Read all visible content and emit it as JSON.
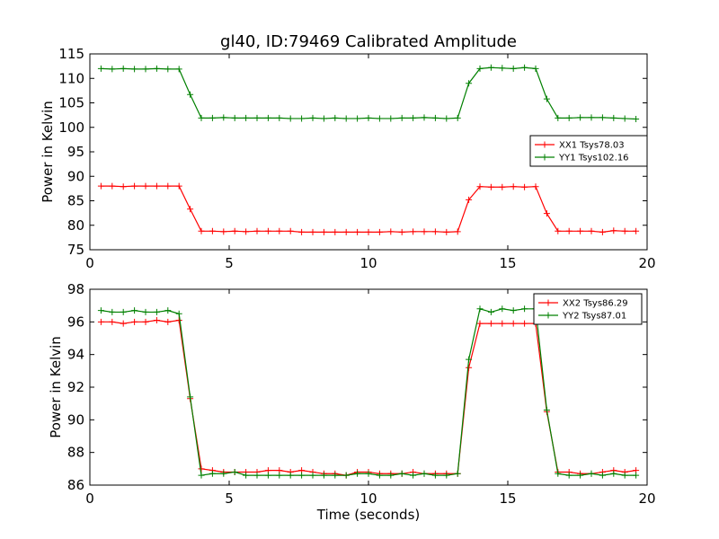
{
  "figure": {
    "title": "gl40, ID:79469 Calibrated Amplitude"
  },
  "chart_data": [
    {
      "type": "line",
      "title": "gl40, ID:79469 Calibrated Amplitude",
      "xlabel": "",
      "ylabel": "Power in Kelvin",
      "xlim": [
        0,
        20
      ],
      "ylim": [
        75,
        115
      ],
      "xticks": [
        0,
        5,
        10,
        15,
        20
      ],
      "yticks": [
        75,
        80,
        85,
        90,
        95,
        100,
        105,
        110,
        115
      ],
      "grid": false,
      "legend_position": "center-right",
      "x": [
        0.4,
        0.8,
        1.2,
        1.6,
        2.0,
        2.4,
        2.8,
        3.2,
        3.6,
        4.0,
        4.4,
        4.8,
        5.2,
        5.6,
        6.0,
        6.4,
        6.8,
        7.2,
        7.6,
        8.0,
        8.4,
        8.8,
        9.2,
        9.6,
        10.0,
        10.4,
        10.8,
        11.2,
        11.6,
        12.0,
        12.4,
        12.8,
        13.2,
        13.6,
        14.0,
        14.4,
        14.8,
        15.2,
        15.6,
        16.0,
        16.4,
        16.8,
        17.2,
        17.6,
        18.0,
        18.4,
        18.8,
        19.2,
        19.6
      ],
      "series": [
        {
          "name": "XX1 Tsys78.03",
          "color": "#ff0000",
          "values": [
            88.0,
            88.0,
            87.9,
            88.0,
            88.0,
            88.0,
            88.0,
            88.0,
            83.3,
            78.8,
            78.8,
            78.7,
            78.8,
            78.7,
            78.8,
            78.8,
            78.8,
            78.8,
            78.6,
            78.6,
            78.6,
            78.6,
            78.6,
            78.6,
            78.6,
            78.6,
            78.7,
            78.6,
            78.7,
            78.7,
            78.7,
            78.6,
            78.7,
            85.2,
            87.9,
            87.8,
            87.8,
            87.9,
            87.8,
            87.9,
            82.4,
            78.8,
            78.8,
            78.8,
            78.8,
            78.6,
            78.9,
            78.8,
            78.8
          ]
        },
        {
          "name": "YY1 Tsys102.16",
          "color": "#008000",
          "values": [
            112.0,
            111.9,
            112.0,
            111.9,
            111.9,
            112.0,
            111.9,
            111.9,
            106.7,
            101.9,
            101.9,
            102.0,
            101.9,
            101.9,
            101.9,
            101.9,
            101.9,
            101.8,
            101.8,
            101.9,
            101.8,
            101.9,
            101.8,
            101.8,
            101.9,
            101.8,
            101.8,
            101.9,
            101.9,
            102.0,
            101.9,
            101.8,
            101.9,
            109.0,
            112.0,
            112.2,
            112.1,
            112.0,
            112.2,
            112.0,
            105.8,
            101.9,
            101.9,
            102.0,
            102.0,
            102.0,
            101.9,
            101.8,
            101.7
          ]
        }
      ]
    },
    {
      "type": "line",
      "title": "",
      "xlabel": "Time (seconds)",
      "ylabel": "Power in Kelvin",
      "xlim": [
        0,
        20
      ],
      "ylim": [
        86,
        98
      ],
      "xticks": [
        0,
        5,
        10,
        15,
        20
      ],
      "yticks": [
        86,
        88,
        90,
        92,
        94,
        96,
        98
      ],
      "grid": false,
      "legend_position": "top-right",
      "x": [
        0.4,
        0.8,
        1.2,
        1.6,
        2.0,
        2.4,
        2.8,
        3.2,
        3.6,
        4.0,
        4.4,
        4.8,
        5.2,
        5.6,
        6.0,
        6.4,
        6.8,
        7.2,
        7.6,
        8.0,
        8.4,
        8.8,
        9.2,
        9.6,
        10.0,
        10.4,
        10.8,
        11.2,
        11.6,
        12.0,
        12.4,
        12.8,
        13.2,
        13.6,
        14.0,
        14.4,
        14.8,
        15.2,
        15.6,
        16.0,
        16.4,
        16.8,
        17.2,
        17.6,
        18.0,
        18.4,
        18.8,
        19.2,
        19.6
      ],
      "series": [
        {
          "name": "XX2 Tsys86.29",
          "color": "#ff0000",
          "values": [
            96.0,
            96.0,
            95.9,
            96.0,
            96.0,
            96.1,
            96.0,
            96.1,
            91.3,
            87.0,
            86.9,
            86.8,
            86.8,
            86.8,
            86.8,
            86.9,
            86.9,
            86.8,
            86.9,
            86.8,
            86.7,
            86.7,
            86.6,
            86.8,
            86.8,
            86.7,
            86.7,
            86.7,
            86.8,
            86.7,
            86.7,
            86.7,
            86.7,
            93.2,
            95.9,
            95.9,
            95.9,
            95.9,
            95.9,
            95.9,
            90.5,
            86.8,
            86.8,
            86.7,
            86.7,
            86.8,
            86.9,
            86.8,
            86.9
          ]
        },
        {
          "name": "YY2 Tsys87.01",
          "color": "#008000",
          "values": [
            96.7,
            96.6,
            96.6,
            96.7,
            96.6,
            96.6,
            96.7,
            96.5,
            91.4,
            86.6,
            86.7,
            86.7,
            86.8,
            86.6,
            86.6,
            86.6,
            86.6,
            86.6,
            86.6,
            86.6,
            86.6,
            86.6,
            86.6,
            86.7,
            86.7,
            86.6,
            86.6,
            86.7,
            86.6,
            86.7,
            86.6,
            86.6,
            86.7,
            93.7,
            96.8,
            96.6,
            96.8,
            96.7,
            96.8,
            96.8,
            90.6,
            86.7,
            86.6,
            86.6,
            86.7,
            86.6,
            86.7,
            86.6,
            86.6
          ]
        }
      ]
    }
  ]
}
